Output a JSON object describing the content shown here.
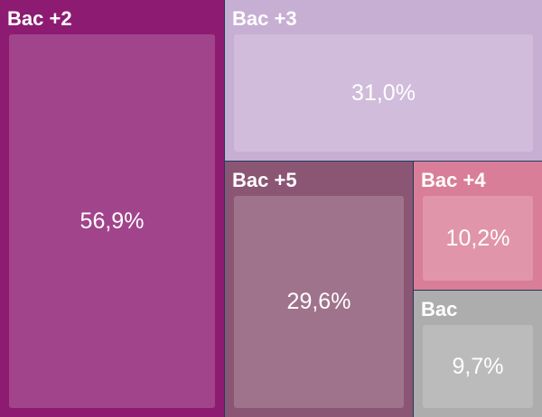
{
  "chart_data": {
    "type": "treemap",
    "items": [
      {
        "label": "Bac +2",
        "value": 56.9,
        "value_label": "56,9%",
        "color": "#8e1b72"
      },
      {
        "label": "Bac +3",
        "value": 31.0,
        "value_label": "31,0%",
        "color": "#c7aed3"
      },
      {
        "label": "Bac +5",
        "value": 29.6,
        "value_label": "29,6%",
        "color": "#8b5574"
      },
      {
        "label": "Bac +4",
        "value": 10.2,
        "value_label": "10,2%",
        "color": "#d97e98"
      },
      {
        "label": "Bac",
        "value": 9.7,
        "value_label": "9,7%",
        "color": "#adadad"
      }
    ]
  }
}
